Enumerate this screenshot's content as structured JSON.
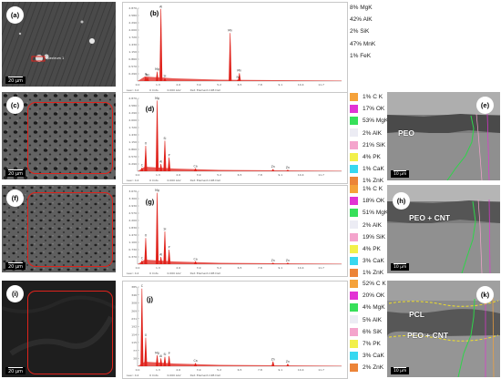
{
  "panels": {
    "a": {
      "tag": "(a)",
      "scale": "20 µm",
      "inset_label": "Spectrum 1"
    },
    "b": {
      "tag": "(b)"
    },
    "c": {
      "tag": "(c)",
      "scale": "20 µm"
    },
    "d": {
      "tag": "(d)"
    },
    "e": {
      "tag": "(e)",
      "label": "PEO",
      "scale": "10 µm"
    },
    "f": {
      "tag": "(f)",
      "scale": "20 µm"
    },
    "g": {
      "tag": "(g)"
    },
    "h": {
      "tag": "(h)",
      "label": "PEO + CNT",
      "scale": "10 µm"
    },
    "i": {
      "tag": "(i)",
      "scale": "20 µm"
    },
    "j": {
      "tag": "(j)"
    },
    "k": {
      "tag": "(k)",
      "label_top": "PCL",
      "label": "PEO + CNT",
      "scale": "10 µm"
    }
  },
  "spectrum_axes": {
    "x_ticks": [
      "0.0",
      "1.3",
      "2.6",
      "3.9",
      "5.2",
      "6.5",
      "7.8",
      "9.1",
      "10.4",
      "11.7"
    ],
    "footer": [
      "Lsec: 4.2",
      "0 Cnts",
      "0.000 keV",
      "Det: Element-C2B Det"
    ]
  },
  "spectra": {
    "b": {
      "y_ticks": [
        "2.870",
        "2.580",
        "2.290",
        "2.000",
        "1.720",
        "1.430",
        "1.150",
        "0.860",
        "0.570",
        "0.290"
      ],
      "peaks": [
        {
          "e": 0.52,
          "h": 0.06,
          "label": "O"
        },
        {
          "e": 0.64,
          "h": 0.05,
          "label": "Mn"
        },
        {
          "e": 1.25,
          "h": 0.13,
          "label": "Mg"
        },
        {
          "e": 1.49,
          "h": 0.99,
          "label": "Al"
        },
        {
          "e": 1.74,
          "h": 0.04,
          "label": "Si"
        },
        {
          "e": 5.9,
          "h": 0.66,
          "label": "Mn"
        },
        {
          "e": 6.49,
          "h": 0.11,
          "label": "Mn"
        },
        {
          "e": 6.4,
          "h": 0.02,
          "label": "Fe"
        }
      ]
    },
    "d": {
      "y_ticks": [
        "2.870",
        "2.580",
        "2.290",
        "2.000",
        "1.720",
        "1.430",
        "1.150",
        "0.860",
        "0.570",
        "0.290"
      ],
      "peaks": [
        {
          "e": 0.28,
          "h": 0.05,
          "label": "C"
        },
        {
          "e": 0.52,
          "h": 0.35,
          "label": "O"
        },
        {
          "e": 1.25,
          "h": 0.97,
          "label": "Mg"
        },
        {
          "e": 1.49,
          "h": 0.1,
          "label": "Al"
        },
        {
          "e": 1.74,
          "h": 0.42,
          "label": "Si"
        },
        {
          "e": 2.01,
          "h": 0.19,
          "label": "P"
        },
        {
          "e": 3.69,
          "h": 0.04,
          "label": "Ca"
        },
        {
          "e": 8.63,
          "h": 0.03,
          "label": "Zn"
        },
        {
          "e": 9.57,
          "h": 0.02,
          "label": "Zn"
        }
      ]
    },
    "g": {
      "y_ticks": [
        "3.670",
        "3.300",
        "2.930",
        "2.570",
        "2.200",
        "1.830",
        "1.470",
        "1.100",
        "0.730",
        "0.370"
      ],
      "peaks": [
        {
          "e": 0.28,
          "h": 0.05,
          "label": "C"
        },
        {
          "e": 0.52,
          "h": 0.36,
          "label": "O"
        },
        {
          "e": 1.25,
          "h": 0.98,
          "label": "Mg"
        },
        {
          "e": 1.49,
          "h": 0.1,
          "label": "Al"
        },
        {
          "e": 1.74,
          "h": 0.45,
          "label": "Si"
        },
        {
          "e": 2.01,
          "h": 0.2,
          "label": "P"
        },
        {
          "e": 3.69,
          "h": 0.04,
          "label": "Ca"
        },
        {
          "e": 8.63,
          "h": 0.02,
          "label": "Zn"
        },
        {
          "e": 9.57,
          "h": 0.02,
          "label": "Zn"
        }
      ]
    },
    "j": {
      "y_ticks": [
        "385",
        "346",
        "308",
        "269",
        "231",
        "192",
        "154",
        "115",
        "77",
        "38"
      ],
      "peaks": [
        {
          "e": 0.28,
          "h": 0.98,
          "label": "C"
        },
        {
          "e": 0.52,
          "h": 0.36,
          "label": "O"
        },
        {
          "e": 1.25,
          "h": 0.14,
          "label": "Mg"
        },
        {
          "e": 1.49,
          "h": 0.1,
          "label": "Al"
        },
        {
          "e": 1.74,
          "h": 0.12,
          "label": "Si"
        },
        {
          "e": 2.01,
          "h": 0.13,
          "label": "P"
        },
        {
          "e": 3.69,
          "h": 0.04,
          "label": "Ca"
        },
        {
          "e": 8.63,
          "h": 0.06,
          "label": "Zn"
        },
        {
          "e": 9.57,
          "h": 0.03,
          "label": "Zn"
        }
      ]
    }
  },
  "compositions": {
    "b": [
      {
        "text": "8% MgK"
      },
      {
        "text": "42% AlK"
      },
      {
        "text": "2% SiK"
      },
      {
        "text": "47% MnK"
      },
      {
        "text": "1% FeK"
      }
    ],
    "d": [
      {
        "text": "1% C K",
        "color": "#f5a23a"
      },
      {
        "text": "17% OK",
        "color": "#e233d4"
      },
      {
        "text": "53% MgK",
        "color": "#37e05a"
      },
      {
        "text": "2% AlK",
        "color": "#ececf4"
      },
      {
        "text": "21% SiK",
        "color": "#f4a4cc"
      },
      {
        "text": "4% PK",
        "color": "#f2f04a"
      },
      {
        "text": "1% CaK",
        "color": "#38d8f0"
      },
      {
        "text": "1% ZnK",
        "color": "#ec8438"
      }
    ],
    "g": [
      {
        "text": "1% C K",
        "color": "#f5a23a"
      },
      {
        "text": "18% OK",
        "color": "#e233d4"
      },
      {
        "text": "51% MgK",
        "color": "#37e05a"
      },
      {
        "text": "2% AlK",
        "color": "#ececf4"
      },
      {
        "text": "19% SiK",
        "color": "#f4a4cc"
      },
      {
        "text": "4% PK",
        "color": "#f2f04a"
      },
      {
        "text": "3% CaK",
        "color": "#38d8f0"
      },
      {
        "text": "1% ZnK",
        "color": "#ec8438"
      }
    ],
    "j": [
      {
        "text": "52% C K",
        "color": "#f5a23a"
      },
      {
        "text": "20% OK",
        "color": "#e233d4"
      },
      {
        "text": "4% MgK",
        "color": "#37e05a"
      },
      {
        "text": "5% AlK",
        "color": "#ececf4"
      },
      {
        "text": "6% SiK",
        "color": "#f4a4cc"
      },
      {
        "text": "7% PK",
        "color": "#f2f04a"
      },
      {
        "text": "3% CaK",
        "color": "#38d8f0"
      },
      {
        "text": "2% ZnK",
        "color": "#ec8438"
      }
    ]
  },
  "colors": {
    "peak": "#e0231c",
    "frame": "#e0231c",
    "trace_green": "#2fd44a",
    "trace_yellow": "#f0e02a"
  }
}
